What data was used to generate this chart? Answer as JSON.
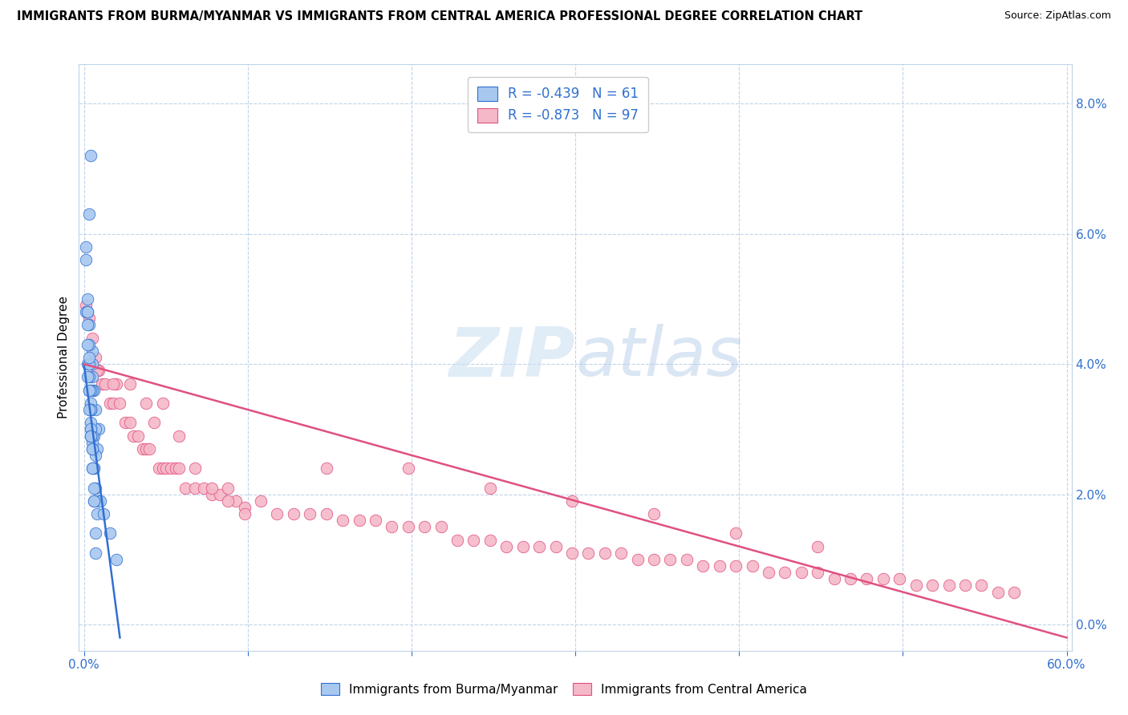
{
  "title": "IMMIGRANTS FROM BURMA/MYANMAR VS IMMIGRANTS FROM CENTRAL AMERICA PROFESSIONAL DEGREE CORRELATION CHART",
  "source": "Source: ZipAtlas.com",
  "ylabel": "Professional Degree",
  "legend_entry1": "R = -0.439   N = 61",
  "legend_entry2": "R = -0.873   N = 97",
  "legend_label1": "Immigrants from Burma/Myanmar",
  "legend_label2": "Immigrants from Central America",
  "watermark_zip": "ZIP",
  "watermark_atlas": "atlas",
  "blue_color": "#a8c8f0",
  "pink_color": "#f5b8c8",
  "blue_line_color": "#3070d0",
  "pink_line_color": "#e05080",
  "legend_text_color": "#3070d0",
  "background_color": "#ffffff",
  "grid_color": "#c0d4e8",
  "title_fontsize": 10.5,
  "blue_scatter": {
    "x": [
      0.002,
      0.004,
      0.003,
      0.001,
      0.005,
      0.006,
      0.007,
      0.005,
      0.008,
      0.009,
      0.003,
      0.004,
      0.005,
      0.005,
      0.006,
      0.007,
      0.002,
      0.001,
      0.003,
      0.004,
      0.004,
      0.005,
      0.004,
      0.003,
      0.002,
      0.006,
      0.007,
      0.007,
      0.008,
      0.009,
      0.01,
      0.004,
      0.005,
      0.006,
      0.004,
      0.003,
      0.002,
      0.006,
      0.012,
      0.016,
      0.02,
      0.004,
      0.005,
      0.003,
      0.003,
      0.002,
      0.005,
      0.006,
      0.007,
      0.003,
      0.004,
      0.004,
      0.005,
      0.001,
      0.002,
      0.002,
      0.003,
      0.004,
      0.005,
      0.006,
      0.007
    ],
    "y": [
      0.05,
      0.072,
      0.063,
      0.048,
      0.042,
      0.036,
      0.033,
      0.04,
      0.027,
      0.03,
      0.046,
      0.033,
      0.038,
      0.036,
      0.029,
      0.03,
      0.048,
      0.056,
      0.043,
      0.036,
      0.03,
      0.028,
      0.034,
      0.038,
      0.04,
      0.024,
      0.026,
      0.021,
      0.017,
      0.019,
      0.019,
      0.033,
      0.029,
      0.024,
      0.031,
      0.036,
      0.043,
      0.021,
      0.017,
      0.014,
      0.01,
      0.03,
      0.027,
      0.04,
      0.036,
      0.046,
      0.024,
      0.019,
      0.014,
      0.041,
      0.033,
      0.029,
      0.027,
      0.058,
      0.048,
      0.038,
      0.033,
      0.029,
      0.024,
      0.019,
      0.011
    ]
  },
  "pink_scatter": {
    "x": [
      0.001,
      0.003,
      0.005,
      0.007,
      0.009,
      0.011,
      0.013,
      0.016,
      0.018,
      0.02,
      0.022,
      0.025,
      0.028,
      0.03,
      0.033,
      0.036,
      0.038,
      0.04,
      0.043,
      0.046,
      0.048,
      0.05,
      0.053,
      0.056,
      0.058,
      0.062,
      0.068,
      0.073,
      0.078,
      0.083,
      0.088,
      0.093,
      0.098,
      0.108,
      0.118,
      0.128,
      0.138,
      0.148,
      0.158,
      0.168,
      0.178,
      0.188,
      0.198,
      0.208,
      0.218,
      0.228,
      0.238,
      0.248,
      0.258,
      0.268,
      0.278,
      0.288,
      0.298,
      0.308,
      0.318,
      0.328,
      0.338,
      0.348,
      0.358,
      0.368,
      0.378,
      0.388,
      0.398,
      0.408,
      0.418,
      0.428,
      0.438,
      0.448,
      0.458,
      0.468,
      0.478,
      0.488,
      0.498,
      0.508,
      0.518,
      0.528,
      0.538,
      0.548,
      0.558,
      0.568,
      0.008,
      0.018,
      0.028,
      0.038,
      0.048,
      0.058,
      0.068,
      0.078,
      0.088,
      0.098,
      0.148,
      0.198,
      0.248,
      0.298,
      0.348,
      0.398,
      0.448
    ],
    "y": [
      0.049,
      0.047,
      0.044,
      0.041,
      0.039,
      0.037,
      0.037,
      0.034,
      0.034,
      0.037,
      0.034,
      0.031,
      0.031,
      0.029,
      0.029,
      0.027,
      0.027,
      0.027,
      0.031,
      0.024,
      0.024,
      0.024,
      0.024,
      0.024,
      0.024,
      0.021,
      0.021,
      0.021,
      0.02,
      0.02,
      0.021,
      0.019,
      0.018,
      0.019,
      0.017,
      0.017,
      0.017,
      0.017,
      0.016,
      0.016,
      0.016,
      0.015,
      0.015,
      0.015,
      0.015,
      0.013,
      0.013,
      0.013,
      0.012,
      0.012,
      0.012,
      0.012,
      0.011,
      0.011,
      0.011,
      0.011,
      0.01,
      0.01,
      0.01,
      0.01,
      0.009,
      0.009,
      0.009,
      0.009,
      0.008,
      0.008,
      0.008,
      0.008,
      0.007,
      0.007,
      0.007,
      0.007,
      0.007,
      0.006,
      0.006,
      0.006,
      0.006,
      0.006,
      0.005,
      0.005,
      0.039,
      0.037,
      0.037,
      0.034,
      0.034,
      0.029,
      0.024,
      0.021,
      0.019,
      0.017,
      0.024,
      0.024,
      0.021,
      0.019,
      0.017,
      0.014,
      0.012
    ]
  },
  "blue_line_x": [
    0.0,
    0.022
  ],
  "blue_line_y": [
    0.04,
    -0.002
  ],
  "pink_line_x": [
    0.0,
    0.6
  ],
  "pink_line_y": [
    0.04,
    -0.002
  ],
  "xlim": [
    -0.003,
    0.603
  ],
  "ylim": [
    -0.004,
    0.086
  ],
  "yticks": [
    0.0,
    0.02,
    0.04,
    0.06,
    0.08
  ],
  "ytick_labels": [
    "0.0%",
    "2.0%",
    "4.0%",
    "6.0%",
    "8.0%"
  ],
  "xtick_left_label": "0.0%",
  "xtick_right_label": "60.0%",
  "xtick_positions": [
    0.0,
    0.1,
    0.2,
    0.3,
    0.4,
    0.5,
    0.6
  ]
}
